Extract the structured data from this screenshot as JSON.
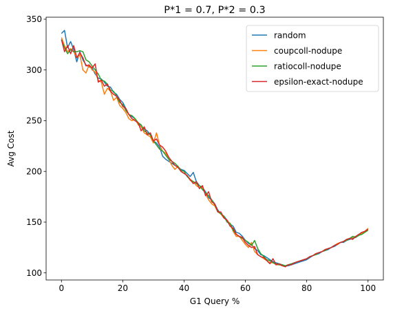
{
  "chart_data": {
    "type": "line",
    "title": "P*1 = 0.7, P*2 = 0.3",
    "xlabel": "G1 Query %",
    "ylabel": "Avg Cost",
    "xlim": [
      -5,
      105
    ],
    "ylim": [
      93,
      352
    ],
    "xticks": [
      0,
      20,
      40,
      60,
      80,
      100
    ],
    "yticks": [
      100,
      150,
      200,
      250,
      300,
      350
    ],
    "grid": false,
    "legend_position": "top-right",
    "colors": {
      "random": "#1f77b4",
      "coupcoll-nodupe": "#ff7f0e",
      "ratiocoll-nodupe": "#2ca02c",
      "epsilon-exact-nodupe": "#d62728"
    },
    "x": [
      0,
      1,
      2,
      3,
      4,
      5,
      6,
      7,
      8,
      9,
      10,
      11,
      12,
      13,
      14,
      15,
      16,
      17,
      18,
      19,
      20,
      21,
      22,
      23,
      24,
      25,
      26,
      27,
      28,
      29,
      30,
      31,
      32,
      33,
      34,
      35,
      36,
      37,
      38,
      39,
      40,
      41,
      42,
      43,
      44,
      45,
      46,
      47,
      48,
      49,
      50,
      51,
      52,
      53,
      54,
      55,
      56,
      57,
      58,
      59,
      60,
      61,
      62,
      63,
      64,
      65,
      66,
      67,
      68,
      69,
      70,
      71,
      72,
      73,
      74,
      75,
      76,
      77,
      78,
      79,
      80,
      81,
      82,
      83,
      84,
      85,
      86,
      87,
      88,
      89,
      90,
      91,
      92,
      93,
      94,
      95,
      96,
      97,
      98,
      99,
      100
    ],
    "series": [
      {
        "name": "random",
        "values": [
          336,
          339,
          322,
          328,
          320,
          308,
          318,
          310,
          305,
          303,
          302,
          296,
          292,
          291,
          288,
          284,
          283,
          278,
          276,
          271,
          268,
          262,
          256,
          254,
          252,
          248,
          244,
          242,
          240,
          236,
          230,
          228,
          224,
          215,
          212,
          210,
          208,
          206,
          204,
          202,
          201,
          198,
          195,
          199,
          190,
          186,
          184,
          180,
          174,
          172,
          168,
          162,
          158,
          156,
          152,
          148,
          146,
          140,
          139,
          136,
          132,
          129,
          128,
          124,
          122,
          118,
          117,
          115,
          113,
          111,
          110,
          109,
          108,
          107,
          107,
          108,
          109,
          110,
          111,
          112,
          113,
          115,
          117,
          118,
          119,
          121,
          122,
          123,
          125,
          126,
          128,
          130,
          130,
          132,
          133,
          134,
          135,
          137,
          139,
          141,
          143
        ]
      },
      {
        "name": "coupcoll-nodupe",
        "values": [
          332,
          324,
          318,
          321,
          318,
          312,
          315,
          300,
          297,
          305,
          300,
          298,
          290,
          288,
          276,
          282,
          279,
          270,
          273,
          265,
          262,
          258,
          252,
          250,
          252,
          246,
          244,
          238,
          236,
          234,
          228,
          238,
          226,
          220,
          218,
          212,
          206,
          202,
          205,
          200,
          198,
          196,
          191,
          190,
          186,
          184,
          184,
          178,
          172,
          168,
          166,
          160,
          158,
          154,
          152,
          148,
          141,
          136,
          136,
          132,
          128,
          125,
          130,
          121,
          118,
          116,
          114,
          112,
          110,
          110,
          108,
          108,
          107,
          107,
          108,
          109,
          110,
          111,
          112,
          113,
          114,
          116,
          117,
          119,
          120,
          121,
          123,
          124,
          125,
          127,
          129,
          130,
          131,
          133,
          134,
          135,
          136,
          137,
          139,
          141,
          144
        ]
      },
      {
        "name": "ratiocoll-nodupe",
        "values": [
          330,
          322,
          316,
          320,
          318,
          318,
          319,
          318,
          310,
          308,
          304,
          300,
          296,
          290,
          289,
          286,
          280,
          279,
          274,
          268,
          266,
          260,
          256,
          255,
          252,
          248,
          246,
          240,
          238,
          236,
          230,
          226,
          222,
          220,
          216,
          212,
          210,
          208,
          205,
          201,
          200,
          195,
          192,
          190,
          188,
          186,
          182,
          179,
          176,
          172,
          167,
          161,
          158,
          156,
          150,
          149,
          142,
          138,
          136,
          134,
          132,
          130,
          127,
          132,
          124,
          119,
          116,
          113,
          112,
          110,
          109,
          108,
          108,
          107,
          108,
          109,
          110,
          111,
          112,
          113,
          114,
          116,
          117,
          118,
          120,
          121,
          122,
          124,
          125,
          127,
          128,
          130,
          131,
          132,
          134,
          136,
          135,
          137,
          138,
          140,
          142
        ]
      },
      {
        "name": "epsilon-exact-nodupe",
        "values": [
          330,
          318,
          324,
          316,
          324,
          312,
          317,
          312,
          304,
          305,
          302,
          306,
          288,
          290,
          284,
          286,
          279,
          276,
          274,
          270,
          264,
          262,
          256,
          252,
          250,
          248,
          240,
          244,
          236,
          238,
          230,
          232,
          226,
          224,
          220,
          214,
          210,
          206,
          204,
          200,
          198,
          196,
          192,
          188,
          190,
          183,
          186,
          176,
          180,
          170,
          168,
          160,
          160,
          154,
          152,
          146,
          144,
          138,
          136,
          135,
          130,
          127,
          125,
          126,
          118,
          116,
          115,
          112,
          109,
          114,
          108,
          109,
          107,
          106,
          108,
          108,
          110,
          111,
          112,
          113,
          114,
          116,
          117,
          119,
          120,
          121,
          123,
          124,
          125,
          127,
          128,
          130,
          131,
          133,
          134,
          133,
          136,
          138,
          140,
          141,
          143
        ]
      }
    ]
  }
}
